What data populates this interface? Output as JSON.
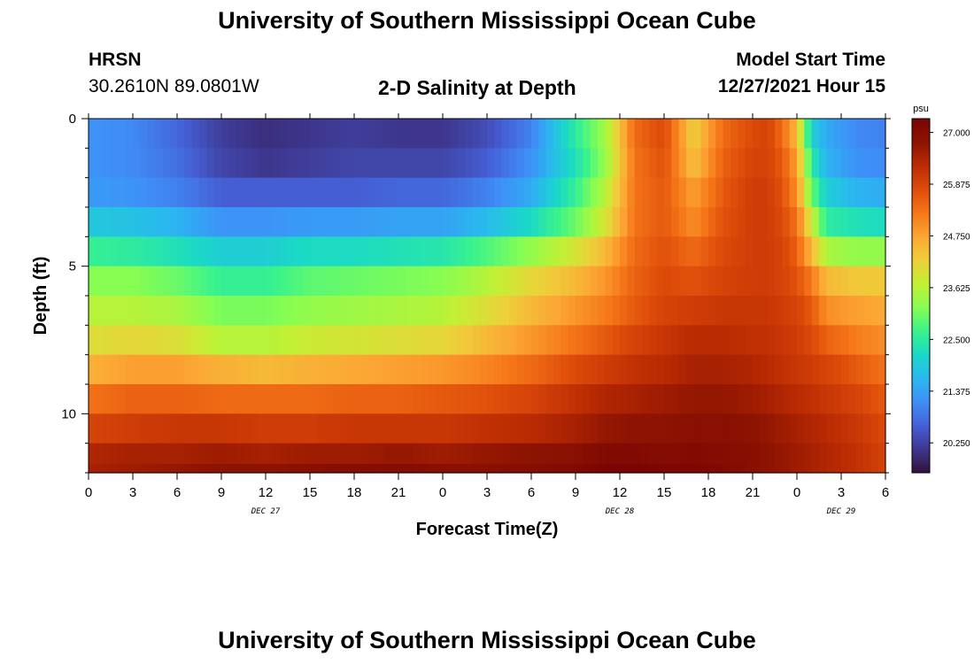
{
  "page_title": "University of Southern Mississippi Ocean Cube",
  "footer_title": "University of Southern Mississippi Ocean Cube",
  "station": {
    "name": "HRSN",
    "coords": "30.2610N  89.0801W"
  },
  "plot_title": "2-D Salinity at Depth",
  "model_start": {
    "label": "Model Start Time",
    "value": "12/27/2021 Hour 15"
  },
  "colors": {
    "palette": [
      "#30123b",
      "#3e378f",
      "#4560d6",
      "#3f8ef8",
      "#2ab8ef",
      "#1ad9c6",
      "#3bf38b",
      "#87fd52",
      "#c2f034",
      "#eecf3a",
      "#fca634",
      "#f57719",
      "#de4c0a",
      "#bc2c03",
      "#8d1302",
      "#7a0403"
    ]
  },
  "chart_data": {
    "type": "heatmap",
    "xlabel": "Forecast Time(Z)",
    "ylabel": "Depth (ft)",
    "x_hours_range": [
      0,
      54
    ],
    "x_ticks": [
      {
        "h": 0,
        "label": "0"
      },
      {
        "h": 3,
        "label": "3"
      },
      {
        "h": 6,
        "label": "6"
      },
      {
        "h": 9,
        "label": "9"
      },
      {
        "h": 12,
        "label": "12"
      },
      {
        "h": 15,
        "label": "15"
      },
      {
        "h": 18,
        "label": "18"
      },
      {
        "h": 21,
        "label": "21"
      },
      {
        "h": 24,
        "label": "0"
      },
      {
        "h": 27,
        "label": "3"
      },
      {
        "h": 30,
        "label": "6"
      },
      {
        "h": 33,
        "label": "9"
      },
      {
        "h": 36,
        "label": "12"
      },
      {
        "h": 39,
        "label": "15"
      },
      {
        "h": 42,
        "label": "18"
      },
      {
        "h": 45,
        "label": "21"
      },
      {
        "h": 48,
        "label": "0"
      },
      {
        "h": 51,
        "label": "3"
      },
      {
        "h": 54,
        "label": "6"
      }
    ],
    "date_labels": [
      {
        "h": 12,
        "label": "DEC 27"
      },
      {
        "h": 36,
        "label": "DEC 28"
      },
      {
        "h": 51,
        "label": "DEC 29"
      }
    ],
    "depth_range_ft": [
      0,
      12
    ],
    "y_ticks": [
      {
        "v": 0,
        "label": "0"
      },
      {
        "v": 5,
        "label": "5"
      },
      {
        "v": 10,
        "label": "10"
      }
    ],
    "colorbar": {
      "unit": "psu",
      "min": 19.6,
      "max": 27.3,
      "ticks": [
        {
          "v": 27.0,
          "label": "27.000"
        },
        {
          "v": 25.875,
          "label": "25.875"
        },
        {
          "v": 24.75,
          "label": "24.750"
        },
        {
          "v": 23.625,
          "label": "23.625"
        },
        {
          "v": 22.5,
          "label": "22.500"
        },
        {
          "v": 21.375,
          "label": "21.375"
        },
        {
          "v": 20.25,
          "label": "20.250"
        }
      ]
    },
    "layer_depths_ft": [
      0.5,
      1.5,
      2.5,
      3.5,
      4.5,
      5.5,
      6.5,
      7.5,
      8.5,
      9.5,
      10.5,
      11.5,
      11.9
    ],
    "time_hours": [
      0,
      3,
      6,
      9,
      12,
      15,
      18,
      21,
      24,
      27,
      30,
      33,
      35,
      37,
      39,
      41,
      43,
      45,
      46,
      47,
      48,
      49,
      50,
      52,
      54
    ],
    "salinity_psu": [
      [
        21.2,
        21.1,
        20.7,
        20.2,
        20.0,
        20.1,
        20.2,
        20.1,
        20.1,
        20.4,
        21.0,
        22.5,
        23.4,
        25.4,
        25.8,
        24.2,
        25.4,
        25.8,
        25.9,
        25.4,
        24.5,
        22.0,
        21.5,
        21.1,
        21.0
      ],
      [
        21.2,
        21.1,
        20.8,
        20.3,
        20.1,
        20.2,
        20.3,
        20.3,
        20.3,
        20.6,
        21.2,
        22.3,
        23.3,
        25.3,
        25.7,
        24.4,
        25.5,
        25.9,
        25.9,
        25.6,
        24.8,
        22.5,
        21.6,
        21.2,
        21.1
      ],
      [
        21.3,
        21.2,
        21.0,
        20.6,
        20.6,
        20.6,
        20.6,
        20.7,
        20.7,
        21.0,
        21.5,
        22.6,
        23.6,
        25.3,
        25.6,
        24.8,
        25.6,
        26.0,
        26.0,
        25.7,
        25.0,
        23.0,
        22.0,
        21.6,
        21.5
      ],
      [
        21.9,
        21.8,
        21.6,
        21.2,
        21.2,
        21.3,
        21.3,
        21.4,
        21.4,
        21.7,
        22.2,
        23.0,
        23.9,
        25.3,
        25.6,
        25.0,
        25.7,
        26.0,
        26.0,
        25.8,
        25.3,
        23.8,
        22.5,
        22.3,
        22.2
      ],
      [
        22.6,
        22.5,
        22.3,
        22.0,
        22.0,
        22.2,
        22.2,
        22.3,
        22.4,
        22.8,
        23.3,
        23.9,
        24.5,
        25.4,
        25.7,
        25.4,
        25.8,
        26.0,
        26.0,
        25.9,
        25.5,
        24.5,
        23.5,
        23.3,
        23.3
      ],
      [
        23.2,
        23.2,
        23.0,
        22.6,
        22.6,
        22.9,
        23.0,
        23.1,
        23.2,
        23.6,
        24.1,
        24.5,
        24.9,
        25.5,
        25.8,
        25.7,
        25.9,
        26.0,
        26.0,
        25.9,
        25.7,
        25.2,
        24.5,
        24.3,
        24.3
      ],
      [
        23.6,
        23.6,
        23.5,
        23.1,
        23.1,
        23.3,
        23.4,
        23.5,
        23.6,
        24.0,
        24.5,
        24.9,
        25.2,
        25.6,
        25.9,
        26.0,
        26.1,
        26.1,
        26.1,
        26.0,
        25.9,
        25.6,
        25.0,
        24.8,
        24.7
      ],
      [
        24.0,
        24.1,
        24.0,
        23.6,
        23.6,
        23.8,
        23.9,
        24.0,
        24.1,
        24.5,
        24.9,
        25.3,
        25.6,
        25.9,
        26.1,
        26.3,
        26.3,
        26.2,
        26.2,
        26.1,
        26.0,
        25.8,
        25.5,
        25.2,
        25.0
      ],
      [
        24.6,
        24.8,
        24.8,
        24.6,
        24.5,
        24.6,
        24.7,
        24.8,
        24.9,
        25.1,
        25.4,
        25.8,
        26.0,
        26.2,
        26.3,
        26.5,
        26.5,
        26.4,
        26.3,
        26.2,
        26.1,
        26.0,
        25.9,
        25.6,
        25.3
      ],
      [
        25.3,
        25.5,
        25.5,
        25.4,
        25.4,
        25.4,
        25.5,
        25.5,
        25.6,
        25.7,
        25.9,
        26.2,
        26.4,
        26.5,
        26.6,
        26.7,
        26.7,
        26.6,
        26.5,
        26.4,
        26.3,
        26.2,
        26.1,
        25.9,
        25.6
      ],
      [
        25.9,
        26.0,
        26.1,
        26.1,
        26.0,
        26.0,
        26.1,
        26.1,
        26.1,
        26.2,
        26.3,
        26.5,
        26.7,
        26.8,
        26.8,
        26.9,
        26.9,
        26.8,
        26.7,
        26.6,
        26.5,
        26.4,
        26.3,
        26.1,
        25.8
      ],
      [
        26.4,
        26.5,
        26.5,
        26.6,
        26.5,
        26.6,
        26.6,
        26.7,
        26.6,
        26.7,
        26.8,
        26.9,
        27.1,
        27.1,
        27.0,
        27.1,
        27.0,
        26.9,
        26.8,
        26.7,
        26.6,
        26.5,
        26.4,
        26.2,
        25.9
      ],
      [
        26.5,
        26.6,
        26.7,
        26.8,
        26.8,
        26.9,
        27.0,
        27.0,
        26.9,
        26.9,
        27.0,
        27.1,
        27.3,
        27.3,
        27.2,
        27.2,
        27.1,
        26.9,
        26.8,
        26.7,
        26.6,
        26.5,
        26.4,
        26.2,
        25.9
      ]
    ]
  }
}
